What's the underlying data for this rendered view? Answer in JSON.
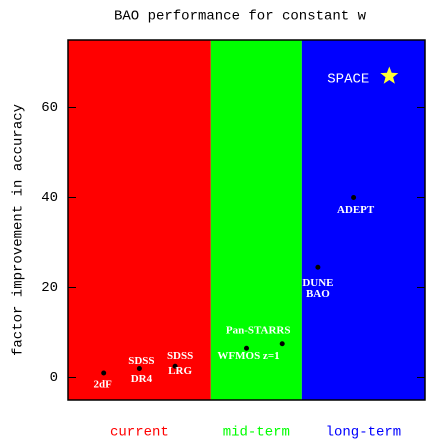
{
  "chart_data": {
    "type": "scatter",
    "title": "BAO performance for constant w",
    "y_label": "factor improvement in accuracy",
    "xlim": [
      0,
      10
    ],
    "ylim": [
      -5,
      75
    ],
    "yticks": [
      0,
      20,
      40,
      60
    ],
    "regions": [
      {
        "label": "current",
        "color": "#ff0000",
        "x": [
          0,
          4
        ]
      },
      {
        "label": "mid-term",
        "color": "#00ff00",
        "x": [
          4,
          6.55
        ]
      },
      {
        "label": "long-term",
        "color": "#0000ff",
        "x": [
          6.55,
          10
        ]
      }
    ],
    "points": [
      {
        "label": [
          "2dF"
        ],
        "x": 1,
        "y": 1
      },
      {
        "label": [
          "SDSS",
          "DR4"
        ],
        "x": 2,
        "y": 2
      },
      {
        "label": [
          "SDSS",
          "LRG"
        ],
        "x": 3,
        "y": 2.5
      },
      {
        "label": [
          "WFMOS z=1"
        ],
        "x": 5,
        "y": 6.5
      },
      {
        "label": [
          "Pan-STARRS"
        ],
        "x": 6,
        "y": 7.5
      },
      {
        "label": [
          "DUNE",
          "BAO"
        ],
        "x": 7,
        "y": 24.5
      },
      {
        "label": [
          "ADEPT"
        ],
        "x": 8,
        "y": 40
      },
      {
        "label": [
          "SPACE"
        ],
        "x": 9,
        "y": 67,
        "marker": "star"
      }
    ]
  }
}
